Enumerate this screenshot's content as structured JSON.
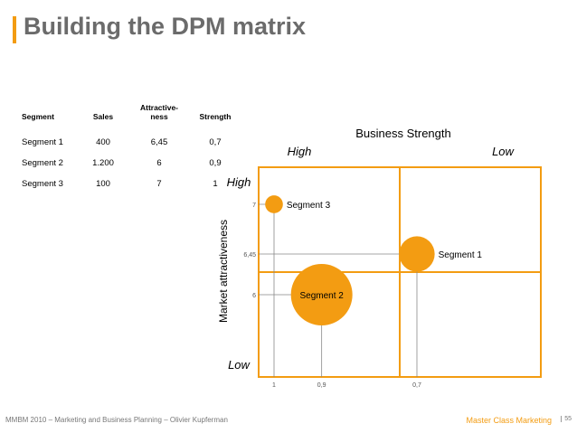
{
  "title": "Building the DPM matrix",
  "accent_color": "#F39C12",
  "table": {
    "headers": [
      "Segment",
      "Sales",
      "Attractive-ness",
      "Strength"
    ],
    "rows": [
      [
        "Segment 1",
        "400",
        "6,45",
        "0,7"
      ],
      [
        "Segment 2",
        "1.200",
        "6",
        "0,9"
      ],
      [
        "Segment 3",
        "100",
        "7",
        "1"
      ]
    ]
  },
  "chart_data": {
    "type": "scatter",
    "subtype": "bubble",
    "x_axis_title": "Business Strength",
    "x_high_label": "High",
    "x_low_label": "Low",
    "y_axis_title": "Market attractiveness",
    "y_high_label": "High",
    "y_low_label": "Low",
    "x_reversed": true,
    "grid": false,
    "x_tick_labels": [
      "1",
      "0,9",
      "0,7"
    ],
    "y_tick_labels": [
      "7",
      "6,45",
      "6"
    ],
    "series": [
      {
        "name": "Segment 3",
        "strength": 1,
        "attractiveness": 7,
        "sales": 100
      },
      {
        "name": "Segment 1",
        "strength": 0.7,
        "attractiveness": 6.45,
        "sales": 400
      },
      {
        "name": "Segment 2",
        "strength": 0.9,
        "attractiveness": 6,
        "sales": 1200
      }
    ]
  },
  "footer": {
    "left": "MMBM 2010 – Marketing and Business Planning – Olivier Kupferman",
    "right": "Master Class Marketing",
    "page": "55"
  }
}
